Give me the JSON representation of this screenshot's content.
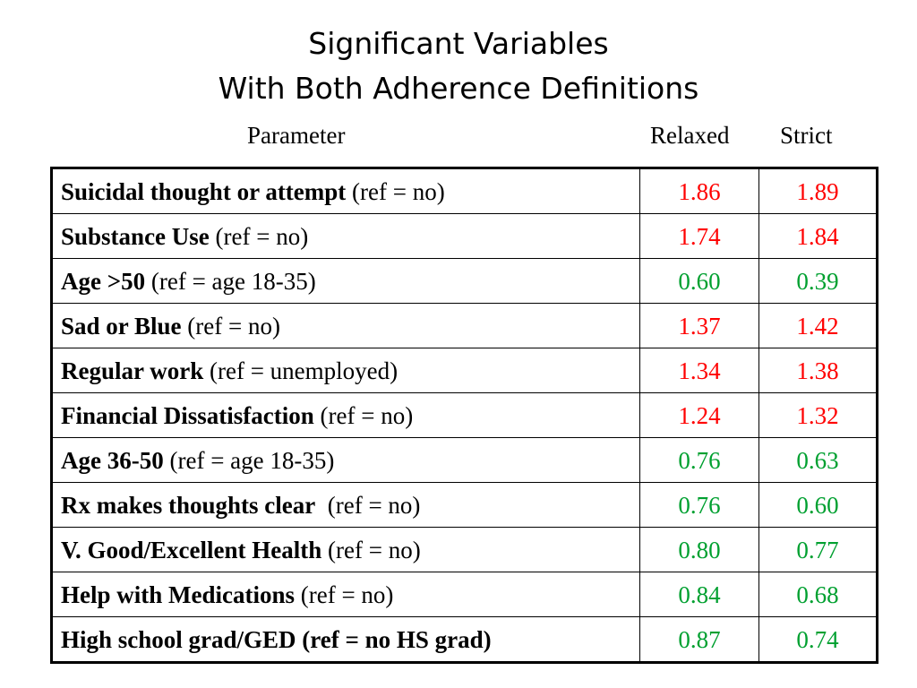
{
  "title": {
    "line1": "Significant Variables",
    "line2": "With Both Adherence Definitions"
  },
  "columns": {
    "parameter": "Parameter",
    "relaxed": "Relaxed",
    "strict": "Strict"
  },
  "colors": {
    "increased": "#ff0000",
    "decreased": "#00a030"
  },
  "rows": [
    {
      "label": "Suicidal thought or attempt",
      "ref": " (ref = no)",
      "relaxed": "1.86",
      "strict": "1.89",
      "direction": "increased"
    },
    {
      "label": "Substance Use",
      "ref": " (ref = no)",
      "relaxed": "1.74",
      "strict": "1.84",
      "direction": "increased"
    },
    {
      "label": "Age >50",
      "ref": " (ref = age 18-35)",
      "relaxed": "0.60",
      "strict": "0.39",
      "direction": "decreased"
    },
    {
      "label": "Sad or Blue",
      "ref": " (ref = no)",
      "relaxed": "1.37",
      "strict": "1.42",
      "direction": "increased"
    },
    {
      "label": "Regular work",
      "ref": " (ref = unemployed)",
      "relaxed": "1.34",
      "strict": "1.38",
      "direction": "increased"
    },
    {
      "label": "Financial Dissatisfaction",
      "ref": " (ref = no)",
      "relaxed": "1.24",
      "strict": "1.32",
      "direction": "increased"
    },
    {
      "label": "Age 36-50",
      "ref": " (ref = age 18-35)",
      "relaxed": "0.76",
      "strict": "0.63",
      "direction": "decreased"
    },
    {
      "label": "Rx makes thoughts clear",
      "ref": "  (ref = no)",
      "relaxed": "0.76",
      "strict": "0.60",
      "direction": "decreased"
    },
    {
      "label": "V. Good/Excellent Health",
      "ref": " (ref = no)",
      "relaxed": "0.80",
      "strict": "0.77",
      "direction": "decreased"
    },
    {
      "label": "Help with Medications",
      "ref": " (ref = no)",
      "relaxed": "0.84",
      "strict": "0.68",
      "direction": "decreased"
    },
    {
      "label": "High school grad/GED (ref = no HS grad)",
      "ref": "",
      "relaxed": "0.87",
      "strict": "0.74",
      "direction": "decreased"
    }
  ]
}
